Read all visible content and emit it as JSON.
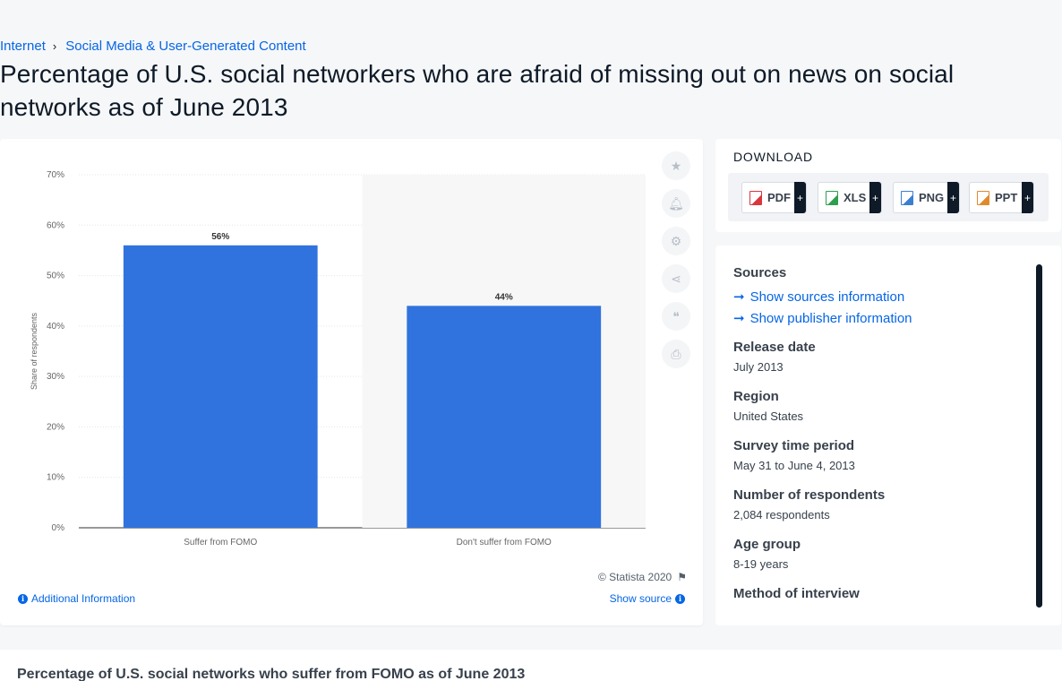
{
  "breadcrumb": {
    "items": [
      "Internet",
      "Social Media & User-Generated Content"
    ],
    "separator": "›"
  },
  "page_title": "Percentage of U.S. social networkers who are afraid of missing out on news on social networks as of June 2013",
  "chart_data": {
    "type": "bar",
    "categories": [
      "Suffer from FOMO",
      "Don't suffer from FOMO"
    ],
    "values": [
      56,
      44
    ],
    "data_labels": [
      "56%",
      "44%"
    ],
    "ylabel": "Share of respondents",
    "ylim": [
      0,
      70
    ],
    "yticks": [
      "0%",
      "10%",
      "20%",
      "30%",
      "40%",
      "50%",
      "60%",
      "70%"
    ],
    "grid": true,
    "bar_color": "#3173de"
  },
  "chart_tools": [
    {
      "name": "star-icon",
      "glyph": "★"
    },
    {
      "name": "bell-icon",
      "glyph": "🔔︎"
    },
    {
      "name": "gear-icon",
      "glyph": "⚙"
    },
    {
      "name": "share-icon",
      "glyph": "⋖"
    },
    {
      "name": "quote-icon",
      "glyph": "❝"
    },
    {
      "name": "print-icon",
      "glyph": "⎙"
    }
  ],
  "copyright": "© Statista 2020",
  "additional_info": "Additional Information",
  "show_source": "Show source",
  "download": {
    "title": "DOWNLOAD",
    "buttons": [
      {
        "label": "PDF",
        "color": "#d9363e"
      },
      {
        "label": "XLS",
        "color": "#2e9e4f"
      },
      {
        "label": "PNG",
        "color": "#3b7fd0"
      },
      {
        "label": "PPT",
        "color": "#e08a2c"
      }
    ],
    "plus": "+"
  },
  "info": {
    "sources_head": "Sources",
    "show_sources": "Show sources information",
    "show_publisher": "Show publisher information",
    "release_head": "Release date",
    "release_val": "July 2013",
    "region_head": "Region",
    "region_val": "United States",
    "survey_head": "Survey time period",
    "survey_val": "May 31 to June 4, 2013",
    "respondents_head": "Number of respondents",
    "respondents_val": "2,084 respondents",
    "age_head": "Age group",
    "age_val": "8-19 years",
    "method_head": "Method of interview"
  },
  "subtitle": "Percentage of U.S. social networks who suffer from FOMO as of June 2013"
}
